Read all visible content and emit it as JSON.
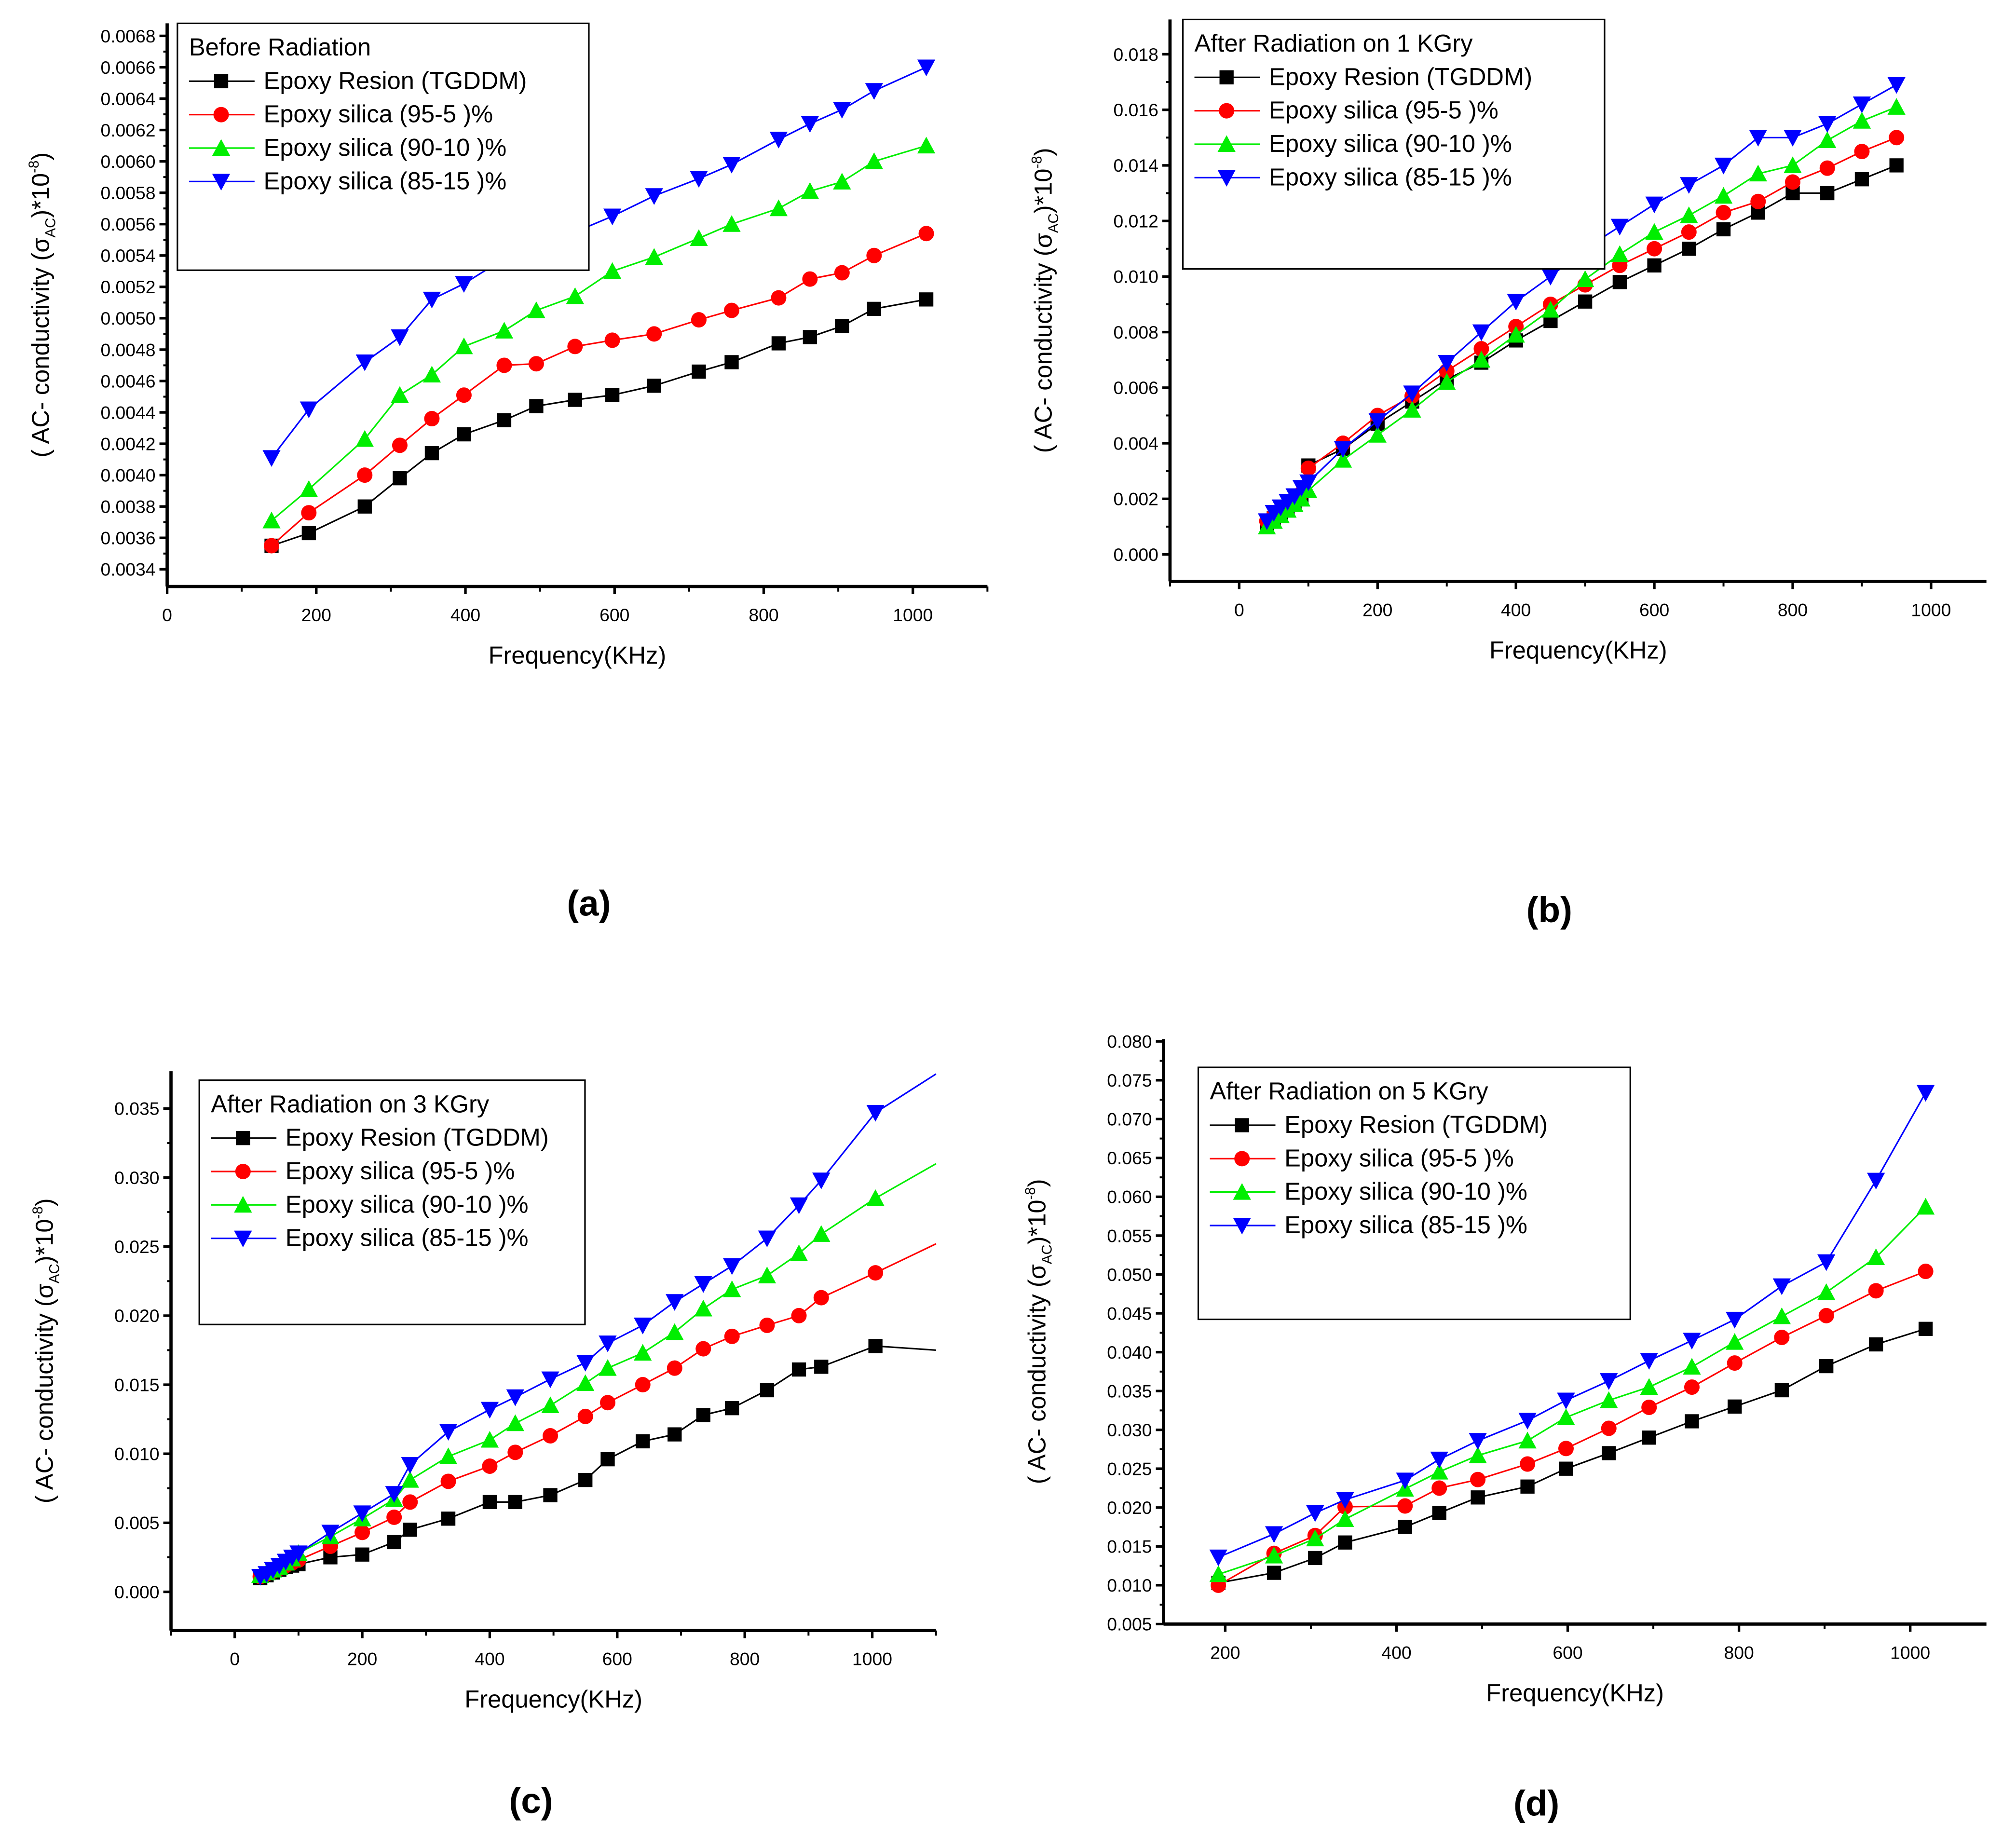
{
  "figure": {
    "panel_labels": [
      "(a)",
      "(b)",
      "(c)",
      "(d)"
    ]
  },
  "legend_entries": [
    "Epoxy Resion (TGDDM)",
    "Epoxy silica (95-5 )%",
    "Epoxy silica (90-10 )%",
    "Epoxy silica (85-15 )%"
  ],
  "series_style": [
    {
      "color": "#000000",
      "marker": "square"
    },
    {
      "color": "#ff0000",
      "marker": "circle"
    },
    {
      "color": "#00ee00",
      "marker": "triangle-up"
    },
    {
      "color": "#0000ff",
      "marker": "triangle-down"
    }
  ],
  "chart_data": [
    {
      "type": "line",
      "panel": "(a)",
      "title": "Before Radiation",
      "xlabel": "Frequency(KHz)",
      "ylabel": {
        "main": "( AC- conductivity (σ",
        "sub": "AC",
        "mid": ")*10",
        "sup": "-8",
        "end": ")"
      },
      "xlim": [
        0,
        1100
      ],
      "ylim": [
        0.00329,
        0.00688
      ],
      "xticks": [
        "0",
        "200",
        "400",
        "600",
        "800",
        "1000"
      ],
      "yticks": [
        "0.0034",
        "0.0036",
        "0.0038",
        "0.0040",
        "0.0042",
        "0.0044",
        "0.0046",
        "0.0048",
        "0.0050",
        "0.0052",
        "0.0054",
        "0.0056",
        "0.0058",
        "0.0060",
        "0.0062",
        "0.0064",
        "0.0066",
        "0.0068"
      ],
      "x": [
        140,
        190,
        265,
        312,
        355,
        398,
        452,
        495,
        547,
        597,
        653,
        713,
        757,
        820,
        862,
        905,
        948,
        1018
      ],
      "series": [
        {
          "name": "Epoxy Resion (TGDDM)",
          "values": [
            0.00355,
            0.00363,
            0.0038,
            0.00398,
            0.00414,
            0.00426,
            0.00435,
            0.00444,
            0.00448,
            0.00451,
            0.00457,
            0.00466,
            0.00472,
            0.00484,
            0.00488,
            0.00495,
            0.00506,
            0.00512
          ]
        },
        {
          "name": "Epoxy silica (95-5 )%",
          "values": [
            0.00355,
            0.00376,
            0.004,
            0.00419,
            0.00436,
            0.00451,
            0.0047,
            0.00471,
            0.00482,
            0.00486,
            0.0049,
            0.00499,
            0.00505,
            0.00513,
            0.00525,
            0.00529,
            0.0054,
            0.00554
          ]
        },
        {
          "name": "Epoxy silica (90-10 )%",
          "values": [
            0.00371,
            0.00391,
            0.00423,
            0.00451,
            0.00464,
            0.00482,
            0.00492,
            0.00505,
            0.00514,
            0.0053,
            0.00539,
            0.00551,
            0.0056,
            0.0057,
            0.00581,
            0.00587,
            0.006,
            0.0061
          ]
        },
        {
          "name": "Epoxy silica (85-15 )%",
          "values": [
            0.00411,
            0.00442,
            0.00472,
            0.00488,
            0.00512,
            0.00522,
            0.00538,
            0.00546,
            0.00555,
            0.00565,
            0.00578,
            0.00589,
            0.00598,
            0.00614,
            0.00624,
            0.00633,
            0.00645,
            0.0066
          ]
        }
      ],
      "legend": "top-left",
      "grid": false
    },
    {
      "type": "line",
      "panel": "(b)",
      "title": "After  Radiation on 1 KGry",
      "xlabel": "Frequency(KHz)",
      "ylabel": {
        "main": "( AC- conductivity (σ",
        "sub": "AC",
        "mid": ")*10",
        "sup": "-8",
        "end": ")"
      },
      "xlim": [
        -100,
        1080
      ],
      "ylim": [
        -0.00097,
        0.01925
      ],
      "xticks": [
        "0",
        "200",
        "400",
        "600",
        "800",
        "1000"
      ],
      "yticks": [
        "0.000",
        "0.002",
        "0.004",
        "0.006",
        "0.008",
        "0.010",
        "0.012",
        "0.014",
        "0.016",
        "0.018"
      ],
      "x": [
        40,
        50,
        60,
        70,
        80,
        90,
        100,
        150,
        200,
        250,
        300,
        350,
        400,
        450,
        500,
        550,
        600,
        650,
        700,
        750,
        800,
        850,
        900,
        950
      ],
      "series": [
        {
          "name": "Epoxy Resion (TGDDM)",
          "values": [
            0.0011,
            0.0013,
            0.0015,
            0.0017,
            0.0018,
            0.002,
            0.0032,
            0.0038,
            0.0047,
            0.0055,
            0.0063,
            0.0069,
            0.0077,
            0.0084,
            0.0091,
            0.0098,
            0.0104,
            0.011,
            0.0117,
            0.0123,
            0.013,
            0.013,
            0.0135,
            0.014
          ]
        },
        {
          "name": "Epoxy silica (95-5 )%",
          "values": [
            0.0012,
            0.0014,
            0.0016,
            0.0018,
            0.002,
            0.0022,
            0.0031,
            0.004,
            0.005,
            0.0057,
            0.0066,
            0.0074,
            0.0082,
            0.009,
            0.0097,
            0.0104,
            0.011,
            0.0116,
            0.0123,
            0.0127,
            0.0134,
            0.0139,
            0.0145,
            0.015
          ]
        },
        {
          "name": "Epoxy silica (90-10 )%",
          "values": [
            0.001,
            0.0012,
            0.0014,
            0.0016,
            0.0018,
            0.002,
            0.0023,
            0.0034,
            0.0043,
            0.0052,
            0.0062,
            0.007,
            0.0079,
            0.0088,
            0.0099,
            0.0108,
            0.0116,
            0.0122,
            0.0129,
            0.0137,
            0.014,
            0.0149,
            0.0156,
            0.0161
          ]
        },
        {
          "name": "Epoxy silica (85-15 )%",
          "values": [
            0.0012,
            0.0015,
            0.0017,
            0.0019,
            0.0021,
            0.0024,
            0.0026,
            0.0038,
            0.0048,
            0.0058,
            0.0069,
            0.008,
            0.0091,
            0.01,
            0.011,
            0.0118,
            0.0126,
            0.0133,
            0.014,
            0.015,
            0.015,
            0.0155,
            0.0162,
            0.0169
          ]
        }
      ],
      "legend": "top-left",
      "grid": false
    },
    {
      "type": "line",
      "panel": "(c)",
      "title": "After  Radiation on 3 KGry",
      "xlabel": "Frequency(KHz)",
      "ylabel": {
        "main": "( AC- conductivity (σ",
        "sub": "AC",
        "mid": ")*10",
        "sup": "-8",
        "end": ")"
      },
      "xlim": [
        -100,
        1100
      ],
      "ylim": [
        -0.0028,
        0.0377
      ],
      "xticks": [
        "0",
        "200",
        "400",
        "600",
        "800",
        "1000"
      ],
      "yticks": [
        "0.000",
        "0.005",
        "0.010",
        "0.015",
        "0.020",
        "0.025",
        "0.030",
        "0.035"
      ],
      "x": [
        40,
        50,
        60,
        70,
        80,
        90,
        100,
        150,
        200,
        250,
        275,
        335,
        400,
        440,
        495,
        550,
        585,
        640,
        690,
        735,
        780,
        835,
        885,
        920,
        1005
      ],
      "series": [
        {
          "name": "Epoxy Resion (TGDDM)",
          "values": [
            0.001,
            0.0012,
            0.0014,
            0.0016,
            0.0018,
            0.0019,
            0.002,
            0.0025,
            0.0027,
            0.0036,
            0.0045,
            0.0053,
            0.0065,
            0.0065,
            0.007,
            0.0081,
            0.0096,
            0.0109,
            0.0114,
            0.0128,
            0.0133,
            0.0146,
            0.0161,
            0.0163,
            0.0178
          ],
          "tail": [
            1100,
            0.0175
          ]
        },
        {
          "name": "Epoxy silica (95-5 )%",
          "values": [
            0.0011,
            0.0013,
            0.0015,
            0.0017,
            0.0019,
            0.0021,
            0.0023,
            0.0033,
            0.0043,
            0.0054,
            0.0065,
            0.008,
            0.0091,
            0.0101,
            0.0113,
            0.0127,
            0.0137,
            0.015,
            0.0162,
            0.0176,
            0.0185,
            0.0193,
            0.02,
            0.0213,
            0.0231
          ],
          "tail": [
            1100,
            0.0252
          ]
        },
        {
          "name": "Epoxy silica (90-10 )%",
          "values": [
            0.0012,
            0.0014,
            0.0016,
            0.0018,
            0.0021,
            0.0024,
            0.0028,
            0.004,
            0.0053,
            0.0067,
            0.0081,
            0.0098,
            0.011,
            0.0122,
            0.0135,
            0.0151,
            0.0162,
            0.0173,
            0.0188,
            0.0205,
            0.0219,
            0.0229,
            0.0245,
            0.0259,
            0.0285
          ],
          "tail": [
            1100,
            0.031
          ]
        },
        {
          "name": "Epoxy silica (85-15 )%",
          "values": [
            0.0011,
            0.0013,
            0.0016,
            0.0019,
            0.0022,
            0.0025,
            0.0028,
            0.0043,
            0.0057,
            0.0071,
            0.0092,
            0.0116,
            0.0132,
            0.0141,
            0.0154,
            0.0166,
            0.018,
            0.0193,
            0.021,
            0.0223,
            0.0236,
            0.0256,
            0.028,
            0.0298,
            0.0347
          ],
          "tail": [
            1100,
            0.0375
          ]
        }
      ],
      "legend": "top-left",
      "grid": false
    },
    {
      "type": "line",
      "panel": "(d)",
      "title": "After  Radiation on 5 KGry",
      "xlabel": "Frequency(KHz)",
      "ylabel": {
        "main": "( AC- conductivity (σ",
        "sub": "AC",
        "mid": ")*10",
        "sup": "-8",
        "end": ")"
      },
      "xlim": [
        128,
        1089
      ],
      "ylim": [
        0.005,
        0.0803
      ],
      "xticks": [
        "200",
        "400",
        "600",
        "800",
        "1000"
      ],
      "yticks": [
        "0.005",
        "0.010",
        "0.015",
        "0.020",
        "0.025",
        "0.030",
        "0.035",
        "0.040",
        "0.045",
        "0.050",
        "0.055",
        "0.060",
        "0.065",
        "0.070",
        "0.075",
        "0.080"
      ],
      "x": [
        192,
        257,
        305,
        340,
        410,
        450,
        495,
        553,
        598,
        648,
        695,
        745,
        795,
        850,
        902,
        960,
        1018
      ],
      "series": [
        {
          "name": "Epoxy Resion (TGDDM)",
          "values": [
            0.0103,
            0.0116,
            0.0135,
            0.0155,
            0.0175,
            0.0193,
            0.0213,
            0.0227,
            0.025,
            0.027,
            0.029,
            0.0311,
            0.033,
            0.0351,
            0.0382,
            0.041,
            0.043
          ]
        },
        {
          "name": "Epoxy silica (95-5 )%",
          "values": [
            0.01,
            0.0141,
            0.0164,
            0.0201,
            0.0202,
            0.0225,
            0.0236,
            0.0256,
            0.0276,
            0.0302,
            0.0329,
            0.0355,
            0.0386,
            0.0419,
            0.0447,
            0.0479,
            0.0504
          ]
        },
        {
          "name": "Epoxy silica (90-10 )%",
          "values": [
            0.0114,
            0.0138,
            0.016,
            0.0185,
            0.0224,
            0.0246,
            0.0267,
            0.0286,
            0.0316,
            0.0338,
            0.0355,
            0.0381,
            0.0413,
            0.0446,
            0.0477,
            0.0522,
            0.0587
          ]
        },
        {
          "name": "Epoxy silica (85-15 )%",
          "values": [
            0.0136,
            0.0166,
            0.0193,
            0.021,
            0.0235,
            0.0262,
            0.0286,
            0.0312,
            0.0338,
            0.0363,
            0.0389,
            0.0415,
            0.0442,
            0.0485,
            0.0516,
            0.0621,
            0.0734
          ]
        }
      ],
      "legend": "top-left",
      "grid": false
    }
  ]
}
